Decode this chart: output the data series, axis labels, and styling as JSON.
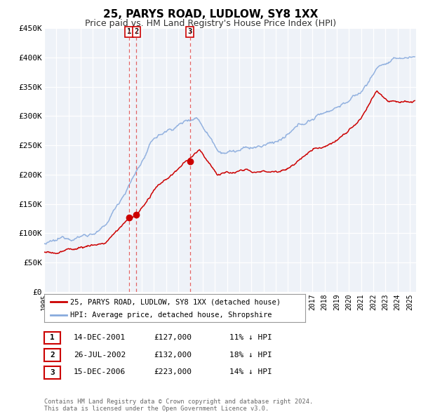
{
  "title": "25, PARYS ROAD, LUDLOW, SY8 1XX",
  "subtitle": "Price paid vs. HM Land Registry's House Price Index (HPI)",
  "background_color": "#ffffff",
  "plot_bg_color": "#eef2f8",
  "grid_color": "#ffffff",
  "red_line_color": "#cc0000",
  "blue_line_color": "#88aadd",
  "ylim": [
    0,
    450000
  ],
  "yticks": [
    0,
    50000,
    100000,
    150000,
    200000,
    250000,
    300000,
    350000,
    400000,
    450000
  ],
  "ytick_labels": [
    "£0",
    "£50K",
    "£100K",
    "£150K",
    "£200K",
    "£250K",
    "£300K",
    "£350K",
    "£400K",
    "£450K"
  ],
  "xlim_start": 1995.0,
  "xlim_end": 2025.5,
  "xtick_years": [
    1995,
    1996,
    1997,
    1998,
    1999,
    2000,
    2001,
    2002,
    2003,
    2004,
    2005,
    2006,
    2007,
    2008,
    2009,
    2010,
    2011,
    2012,
    2013,
    2014,
    2015,
    2016,
    2017,
    2018,
    2019,
    2020,
    2021,
    2022,
    2023,
    2024,
    2025
  ],
  "sale_markers": [
    {
      "num": "1",
      "year": 2001.96,
      "price": 127000
    },
    {
      "num": "2",
      "year": 2002.57,
      "price": 132000
    },
    {
      "num": "3",
      "year": 2006.96,
      "price": 223000
    }
  ],
  "legend_red_label": "25, PARYS ROAD, LUDLOW, SY8 1XX (detached house)",
  "legend_blue_label": "HPI: Average price, detached house, Shropshire",
  "table_rows": [
    {
      "num": "1",
      "date": "14-DEC-2001",
      "price": "£127,000",
      "pct": "11% ↓ HPI"
    },
    {
      "num": "2",
      "date": "26-JUL-2002",
      "price": "£132,000",
      "pct": "18% ↓ HPI"
    },
    {
      "num": "3",
      "date": "15-DEC-2006",
      "price": "£223,000",
      "pct": "14% ↓ HPI"
    }
  ],
  "footer_line1": "Contains HM Land Registry data © Crown copyright and database right 2024.",
  "footer_line2": "This data is licensed under the Open Government Licence v3.0."
}
